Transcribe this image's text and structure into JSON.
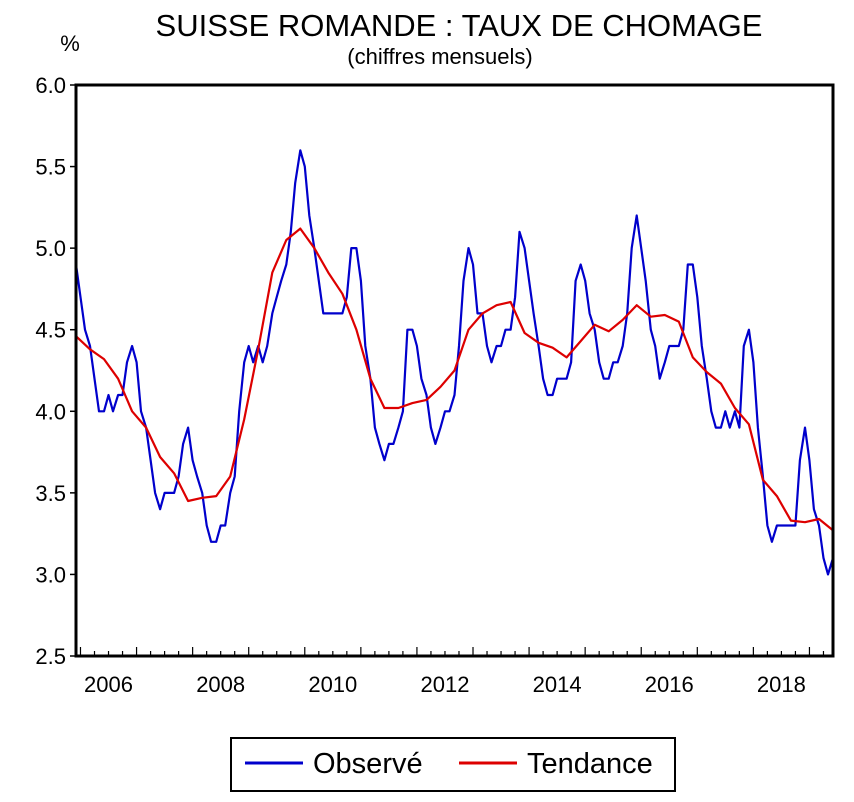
{
  "chart_data": {
    "type": "line",
    "title": "SUISSE ROMANDE : TAUX DE CHOMAGE",
    "subtitle": "(chiffres mensuels)",
    "ylabel": "%",
    "xlabel": "",
    "ylim": [
      2.5,
      6.0
    ],
    "xlim": [
      2005.92,
      2019.42
    ],
    "y_ticks": [
      "6.0",
      "5.5",
      "5.0",
      "4.5",
      "4.0",
      "3.5",
      "3.0",
      "2.5"
    ],
    "x_ticks": [
      "2006",
      "2008",
      "2010",
      "2012",
      "2014",
      "2016",
      "2018"
    ],
    "grid": false,
    "legend_position": "bottom-center",
    "series": [
      {
        "name": "Observé",
        "color": "#0000cc",
        "points": [
          [
            2005.92,
            4.9
          ],
          [
            2006.0,
            4.7
          ],
          [
            2006.08,
            4.5
          ],
          [
            2006.17,
            4.4
          ],
          [
            2006.25,
            4.2
          ],
          [
            2006.33,
            4.0
          ],
          [
            2006.42,
            4.0
          ],
          [
            2006.5,
            4.1
          ],
          [
            2006.58,
            4.0
          ],
          [
            2006.67,
            4.1
          ],
          [
            2006.75,
            4.1
          ],
          [
            2006.83,
            4.3
          ],
          [
            2006.92,
            4.4
          ],
          [
            2007.0,
            4.3
          ],
          [
            2007.08,
            4.0
          ],
          [
            2007.17,
            3.9
          ],
          [
            2007.25,
            3.7
          ],
          [
            2007.33,
            3.5
          ],
          [
            2007.42,
            3.4
          ],
          [
            2007.5,
            3.5
          ],
          [
            2007.58,
            3.5
          ],
          [
            2007.67,
            3.5
          ],
          [
            2007.75,
            3.6
          ],
          [
            2007.83,
            3.8
          ],
          [
            2007.92,
            3.9
          ],
          [
            2008.0,
            3.7
          ],
          [
            2008.08,
            3.6
          ],
          [
            2008.17,
            3.5
          ],
          [
            2008.25,
            3.3
          ],
          [
            2008.33,
            3.2
          ],
          [
            2008.42,
            3.2
          ],
          [
            2008.5,
            3.3
          ],
          [
            2008.58,
            3.3
          ],
          [
            2008.67,
            3.5
          ],
          [
            2008.75,
            3.6
          ],
          [
            2008.83,
            4.0
          ],
          [
            2008.92,
            4.3
          ],
          [
            2009.0,
            4.4
          ],
          [
            2009.08,
            4.3
          ],
          [
            2009.17,
            4.4
          ],
          [
            2009.25,
            4.3
          ],
          [
            2009.33,
            4.4
          ],
          [
            2009.42,
            4.6
          ],
          [
            2009.5,
            4.7
          ],
          [
            2009.58,
            4.8
          ],
          [
            2009.67,
            4.9
          ],
          [
            2009.75,
            5.1
          ],
          [
            2009.83,
            5.4
          ],
          [
            2009.92,
            5.6
          ],
          [
            2010.0,
            5.5
          ],
          [
            2010.08,
            5.2
          ],
          [
            2010.17,
            5.0
          ],
          [
            2010.25,
            4.8
          ],
          [
            2010.33,
            4.6
          ],
          [
            2010.42,
            4.6
          ],
          [
            2010.5,
            4.6
          ],
          [
            2010.58,
            4.6
          ],
          [
            2010.67,
            4.6
          ],
          [
            2010.75,
            4.7
          ],
          [
            2010.83,
            5.0
          ],
          [
            2010.92,
            5.0
          ],
          [
            2011.0,
            4.8
          ],
          [
            2011.08,
            4.4
          ],
          [
            2011.17,
            4.2
          ],
          [
            2011.25,
            3.9
          ],
          [
            2011.33,
            3.8
          ],
          [
            2011.42,
            3.7
          ],
          [
            2011.5,
            3.8
          ],
          [
            2011.58,
            3.8
          ],
          [
            2011.67,
            3.9
          ],
          [
            2011.75,
            4.0
          ],
          [
            2011.83,
            4.5
          ],
          [
            2011.92,
            4.5
          ],
          [
            2012.0,
            4.4
          ],
          [
            2012.08,
            4.2
          ],
          [
            2012.17,
            4.1
          ],
          [
            2012.25,
            3.9
          ],
          [
            2012.33,
            3.8
          ],
          [
            2012.42,
            3.9
          ],
          [
            2012.5,
            4.0
          ],
          [
            2012.58,
            4.0
          ],
          [
            2012.67,
            4.1
          ],
          [
            2012.75,
            4.4
          ],
          [
            2012.83,
            4.8
          ],
          [
            2012.92,
            5.0
          ],
          [
            2013.0,
            4.9
          ],
          [
            2013.08,
            4.6
          ],
          [
            2013.17,
            4.6
          ],
          [
            2013.25,
            4.4
          ],
          [
            2013.33,
            4.3
          ],
          [
            2013.42,
            4.4
          ],
          [
            2013.5,
            4.4
          ],
          [
            2013.58,
            4.5
          ],
          [
            2013.67,
            4.5
          ],
          [
            2013.75,
            4.7
          ],
          [
            2013.83,
            5.1
          ],
          [
            2013.92,
            5.0
          ],
          [
            2014.0,
            4.8
          ],
          [
            2014.08,
            4.6
          ],
          [
            2014.17,
            4.4
          ],
          [
            2014.25,
            4.2
          ],
          [
            2014.33,
            4.1
          ],
          [
            2014.42,
            4.1
          ],
          [
            2014.5,
            4.2
          ],
          [
            2014.58,
            4.2
          ],
          [
            2014.67,
            4.2
          ],
          [
            2014.75,
            4.3
          ],
          [
            2014.83,
            4.8
          ],
          [
            2014.92,
            4.9
          ],
          [
            2015.0,
            4.8
          ],
          [
            2015.08,
            4.6
          ],
          [
            2015.17,
            4.5
          ],
          [
            2015.25,
            4.3
          ],
          [
            2015.33,
            4.2
          ],
          [
            2015.42,
            4.2
          ],
          [
            2015.5,
            4.3
          ],
          [
            2015.58,
            4.3
          ],
          [
            2015.67,
            4.4
          ],
          [
            2015.75,
            4.6
          ],
          [
            2015.83,
            5.0
          ],
          [
            2015.92,
            5.2
          ],
          [
            2016.0,
            5.0
          ],
          [
            2016.08,
            4.8
          ],
          [
            2016.17,
            4.5
          ],
          [
            2016.25,
            4.4
          ],
          [
            2016.33,
            4.2
          ],
          [
            2016.42,
            4.3
          ],
          [
            2016.5,
            4.4
          ],
          [
            2016.58,
            4.4
          ],
          [
            2016.67,
            4.4
          ],
          [
            2016.75,
            4.5
          ],
          [
            2016.83,
            4.9
          ],
          [
            2016.92,
            4.9
          ],
          [
            2017.0,
            4.7
          ],
          [
            2017.08,
            4.4
          ],
          [
            2017.17,
            4.2
          ],
          [
            2017.25,
            4.0
          ],
          [
            2017.33,
            3.9
          ],
          [
            2017.42,
            3.9
          ],
          [
            2017.5,
            4.0
          ],
          [
            2017.58,
            3.9
          ],
          [
            2017.67,
            4.0
          ],
          [
            2017.75,
            3.9
          ],
          [
            2017.83,
            4.4
          ],
          [
            2017.92,
            4.5
          ],
          [
            2018.0,
            4.3
          ],
          [
            2018.08,
            3.9
          ],
          [
            2018.17,
            3.6
          ],
          [
            2018.25,
            3.3
          ],
          [
            2018.33,
            3.2
          ],
          [
            2018.42,
            3.3
          ],
          [
            2018.5,
            3.3
          ],
          [
            2018.58,
            3.3
          ],
          [
            2018.67,
            3.3
          ],
          [
            2018.75,
            3.3
          ],
          [
            2018.83,
            3.7
          ],
          [
            2018.92,
            3.9
          ],
          [
            2019.0,
            3.7
          ],
          [
            2019.08,
            3.4
          ],
          [
            2019.17,
            3.3
          ],
          [
            2019.25,
            3.1
          ],
          [
            2019.33,
            3.0
          ],
          [
            2019.42,
            3.1
          ]
        ]
      },
      {
        "name": "Tendance",
        "color": "#dd0000",
        "points": [
          [
            2005.92,
            4.46
          ],
          [
            2006.17,
            4.38
          ],
          [
            2006.42,
            4.32
          ],
          [
            2006.67,
            4.2
          ],
          [
            2006.92,
            4.0
          ],
          [
            2007.17,
            3.9
          ],
          [
            2007.42,
            3.72
          ],
          [
            2007.67,
            3.62
          ],
          [
            2007.92,
            3.45
          ],
          [
            2008.17,
            3.47
          ],
          [
            2008.42,
            3.48
          ],
          [
            2008.67,
            3.6
          ],
          [
            2008.92,
            3.95
          ],
          [
            2009.17,
            4.38
          ],
          [
            2009.42,
            4.85
          ],
          [
            2009.67,
            5.05
          ],
          [
            2009.92,
            5.12
          ],
          [
            2010.17,
            5.0
          ],
          [
            2010.42,
            4.85
          ],
          [
            2010.67,
            4.72
          ],
          [
            2010.92,
            4.5
          ],
          [
            2011.17,
            4.2
          ],
          [
            2011.42,
            4.02
          ],
          [
            2011.67,
            4.02
          ],
          [
            2011.92,
            4.05
          ],
          [
            2012.17,
            4.07
          ],
          [
            2012.42,
            4.15
          ],
          [
            2012.67,
            4.25
          ],
          [
            2012.92,
            4.5
          ],
          [
            2013.17,
            4.6
          ],
          [
            2013.42,
            4.65
          ],
          [
            2013.67,
            4.67
          ],
          [
            2013.92,
            4.48
          ],
          [
            2014.17,
            4.42
          ],
          [
            2014.42,
            4.39
          ],
          [
            2014.67,
            4.33
          ],
          [
            2014.92,
            4.43
          ],
          [
            2015.17,
            4.53
          ],
          [
            2015.42,
            4.49
          ],
          [
            2015.67,
            4.56
          ],
          [
            2015.92,
            4.65
          ],
          [
            2016.17,
            4.58
          ],
          [
            2016.42,
            4.59
          ],
          [
            2016.67,
            4.55
          ],
          [
            2016.92,
            4.33
          ],
          [
            2017.17,
            4.24
          ],
          [
            2017.42,
            4.17
          ],
          [
            2017.67,
            4.02
          ],
          [
            2017.92,
            3.92
          ],
          [
            2018.17,
            3.58
          ],
          [
            2018.42,
            3.48
          ],
          [
            2018.67,
            3.33
          ],
          [
            2018.92,
            3.32
          ],
          [
            2019.17,
            3.34
          ],
          [
            2019.42,
            3.27
          ]
        ]
      }
    ]
  }
}
